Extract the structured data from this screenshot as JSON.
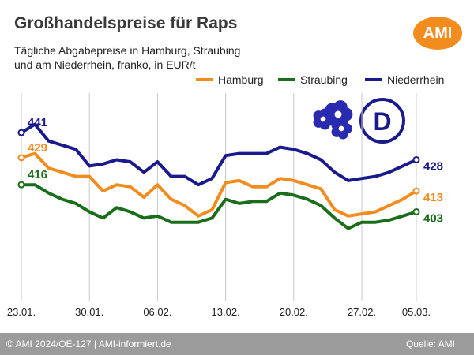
{
  "header": {
    "title": "Großhandelspreise für Raps",
    "subtitle_line1": "Tägliche Abgabepreise in Hamburg, Straubing",
    "subtitle_line2": "und am Niederrhein, franko, in EUR/t",
    "logo_text": "AMI"
  },
  "footer": {
    "left": "© AMI 2024/OE-127 | AMI-informiert.de",
    "right": "Quelle: AMI"
  },
  "chart_data": {
    "type": "line",
    "categories": [
      "23.01.",
      "30.01.",
      "06.02.",
      "13.02.",
      "20.02.",
      "27.02.",
      "05.03."
    ],
    "x": [
      0,
      1,
      2,
      3,
      4,
      5,
      6,
      7,
      8,
      9,
      10,
      11,
      12,
      13,
      14,
      15,
      16,
      17,
      18,
      19,
      20,
      21,
      22,
      23,
      24,
      25,
      26,
      27,
      28,
      29
    ],
    "ylim": [
      360,
      460
    ],
    "grid": "vertical",
    "legend": "top-right",
    "series": [
      {
        "name": "Hamburg",
        "color": "#f28c1e",
        "values": [
          429,
          431,
          424,
          422,
          420,
          420,
          413,
          416,
          415,
          410,
          416,
          409,
          406,
          401,
          404,
          417,
          418,
          415,
          415,
          419,
          418,
          416,
          414,
          404,
          401,
          402,
          403,
          406,
          409,
          413
        ],
        "end_label": "413",
        "start_label": "429"
      },
      {
        "name": "Straubing",
        "color": "#1a6e1a",
        "values": [
          416,
          416,
          412,
          409,
          407,
          403,
          400,
          405,
          403,
          400,
          401,
          398,
          398,
          398,
          400,
          409,
          407,
          408,
          408,
          412,
          411,
          409,
          406,
          400,
          395,
          398,
          398,
          399,
          401,
          403
        ],
        "end_label": "403",
        "start_label": "416"
      },
      {
        "name": "Niederrhein",
        "color": "#1a1a8c",
        "values": [
          441,
          445,
          437,
          435,
          433,
          425,
          426,
          428,
          427,
          422,
          427,
          420,
          420,
          416,
          419,
          430,
          431,
          431,
          431,
          434,
          433,
          431,
          428,
          422,
          418,
          419,
          420,
          422,
          425,
          428
        ],
        "end_label": "428",
        "start_label": "441"
      }
    ],
    "category_positions": [
      0,
      5,
      10,
      15,
      20,
      25,
      29
    ]
  }
}
